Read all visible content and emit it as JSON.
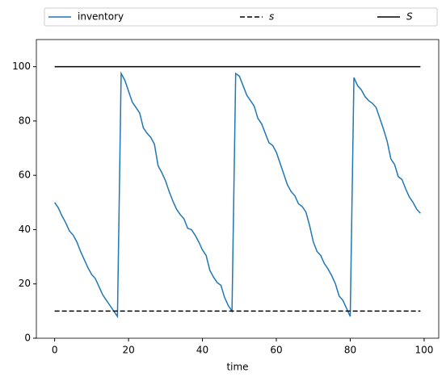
{
  "chart_data": {
    "type": "line",
    "xlabel": "time",
    "x": [
      0,
      1,
      2,
      3,
      4,
      5,
      6,
      7,
      8,
      9,
      10,
      11,
      12,
      13,
      14,
      15,
      16,
      17,
      18,
      19,
      20,
      21,
      22,
      23,
      24,
      25,
      26,
      27,
      28,
      29,
      30,
      31,
      32,
      33,
      34,
      35,
      36,
      37,
      38,
      39,
      40,
      41,
      42,
      43,
      44,
      45,
      46,
      47,
      48,
      49,
      50,
      51,
      52,
      53,
      54,
      55,
      56,
      57,
      58,
      59,
      60,
      61,
      62,
      63,
      64,
      65,
      66,
      67,
      68,
      69,
      70,
      71,
      72,
      73,
      74,
      75,
      76,
      77,
      78,
      79,
      80,
      81,
      82,
      83,
      84,
      85,
      86,
      87,
      88,
      89,
      90,
      91,
      92,
      93,
      94,
      95,
      96,
      97,
      98,
      99
    ],
    "series": [
      {
        "name": "inventory",
        "color": "#1f77b4",
        "dash": "solid",
        "values": [
          50,
          48,
          45,
          42.5,
          39.5,
          38,
          35.5,
          32,
          29,
          26,
          23.5,
          22,
          19,
          16,
          14,
          12,
          10,
          8,
          97.5,
          95,
          91,
          87,
          85,
          83,
          77.5,
          75.5,
          74,
          71.5,
          63.5,
          61,
          58,
          54,
          50.5,
          47.5,
          45.5,
          44,
          40.5,
          40,
          38,
          35.5,
          32.5,
          30.5,
          25,
          22.5,
          20.5,
          19.5,
          15,
          12,
          10,
          97.5,
          96.5,
          93,
          89.5,
          87.5,
          85.5,
          81,
          79,
          75.5,
          72,
          71,
          68.5,
          64.5,
          60.5,
          56.5,
          54,
          52.5,
          49.5,
          48.5,
          46.5,
          41.5,
          35.5,
          32,
          30.5,
          27.5,
          25.5,
          23,
          20,
          15.5,
          14,
          11,
          8,
          96,
          93,
          91.5,
          89,
          87.5,
          86.5,
          85,
          81,
          77,
          72.5,
          66,
          64,
          59.5,
          58.5,
          55,
          52,
          50,
          47.5,
          46
        ]
      },
      {
        "name": "s",
        "color": "#000000",
        "dash": "dashed",
        "values": [
          10,
          10,
          10,
          10,
          10,
          10,
          10,
          10,
          10,
          10,
          10,
          10,
          10,
          10,
          10,
          10,
          10,
          10,
          10,
          10,
          10,
          10,
          10,
          10,
          10,
          10,
          10,
          10,
          10,
          10,
          10,
          10,
          10,
          10,
          10,
          10,
          10,
          10,
          10,
          10,
          10,
          10,
          10,
          10,
          10,
          10,
          10,
          10,
          10,
          10,
          10,
          10,
          10,
          10,
          10,
          10,
          10,
          10,
          10,
          10,
          10,
          10,
          10,
          10,
          10,
          10,
          10,
          10,
          10,
          10,
          10,
          10,
          10,
          10,
          10,
          10,
          10,
          10,
          10,
          10,
          10,
          10,
          10,
          10,
          10,
          10,
          10,
          10,
          10,
          10,
          10,
          10,
          10,
          10,
          10,
          10,
          10,
          10,
          10,
          10
        ]
      },
      {
        "name": "S",
        "color": "#000000",
        "dash": "solid",
        "values": [
          100,
          100,
          100,
          100,
          100,
          100,
          100,
          100,
          100,
          100,
          100,
          100,
          100,
          100,
          100,
          100,
          100,
          100,
          100,
          100,
          100,
          100,
          100,
          100,
          100,
          100,
          100,
          100,
          100,
          100,
          100,
          100,
          100,
          100,
          100,
          100,
          100,
          100,
          100,
          100,
          100,
          100,
          100,
          100,
          100,
          100,
          100,
          100,
          100,
          100,
          100,
          100,
          100,
          100,
          100,
          100,
          100,
          100,
          100,
          100,
          100,
          100,
          100,
          100,
          100,
          100,
          100,
          100,
          100,
          100,
          100,
          100,
          100,
          100,
          100,
          100,
          100,
          100,
          100,
          100,
          100,
          100,
          100,
          100,
          100,
          100,
          100,
          100,
          100,
          100,
          100,
          100,
          100,
          100,
          100,
          100,
          100,
          100,
          100,
          100
        ]
      }
    ],
    "xlim": [
      -4.95,
      103.95
    ],
    "xticks": [
      0,
      20,
      40,
      60,
      80,
      100
    ],
    "ylim": [
      0,
      110
    ],
    "yticks": [
      0,
      20,
      40,
      60,
      80,
      100
    ],
    "grid": false,
    "legend": "above"
  }
}
